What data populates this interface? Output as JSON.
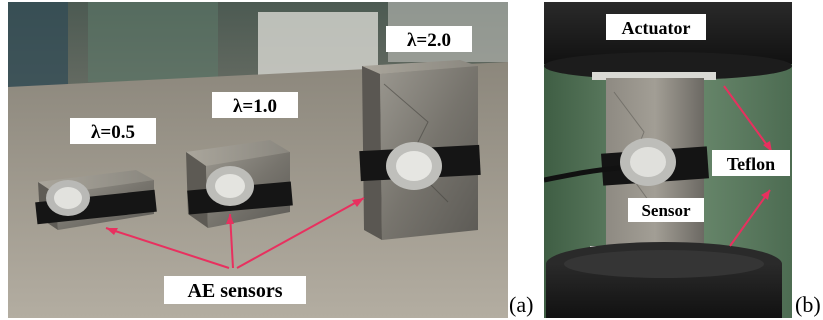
{
  "figure": {
    "panel_a": {
      "letter": "(a)",
      "labels": {
        "ratio_small": "λ=0.5",
        "ratio_mid": "λ=1.0",
        "ratio_large": "λ=2.0",
        "sensors": "AE sensors"
      }
    },
    "panel_b": {
      "letter": "(b)",
      "labels": {
        "actuator": "Actuator",
        "teflon": "Teflon",
        "sensor": "Sensor"
      }
    }
  },
  "colors": {
    "arrow": "#e8305f",
    "label_bg": "#ffffff",
    "label_text": "#000000"
  }
}
